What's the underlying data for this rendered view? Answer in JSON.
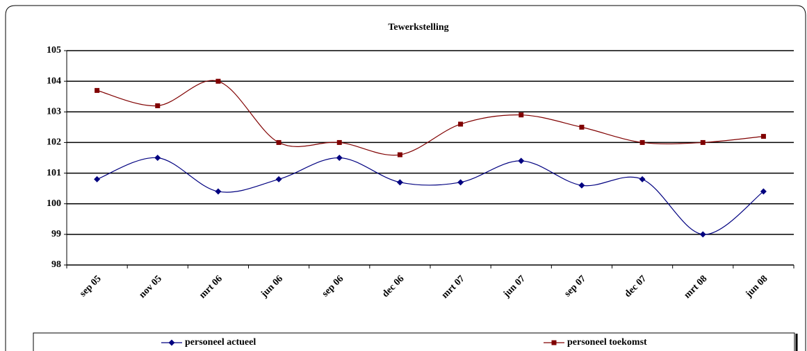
{
  "chart_data": {
    "type": "line",
    "title": "Tewerkstelling",
    "categories": [
      "sep 05",
      "nov 05",
      "mrt 06",
      "jun 06",
      "sep 06",
      "dec 06",
      "mrt 07",
      "jun 07",
      "sep 07",
      "dec 07",
      "mrt 08",
      "jun 08"
    ],
    "series": [
      {
        "name": "personeel actueel",
        "color": "#000080",
        "marker": "diamond",
        "values": [
          100.8,
          101.5,
          100.4,
          100.8,
          101.5,
          100.7,
          100.7,
          101.4,
          100.6,
          100.8,
          99.0,
          100.4
        ]
      },
      {
        "name": "personeel toekomst",
        "color": "#800000",
        "marker": "square",
        "values": [
          103.7,
          103.2,
          104.0,
          102.0,
          102.0,
          101.6,
          102.6,
          102.9,
          102.5,
          102.0,
          102.0,
          102.2
        ]
      }
    ],
    "ylim": [
      98,
      105
    ],
    "yticks": [
      98,
      99,
      100,
      101,
      102,
      103,
      104,
      105
    ],
    "grid": true,
    "smooth": true,
    "legend": "bottom"
  }
}
